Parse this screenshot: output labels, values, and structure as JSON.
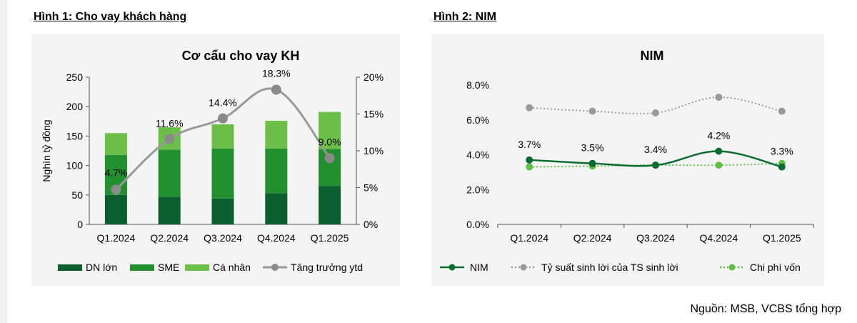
{
  "figure1": {
    "heading": "Hình 1: Cho vay khách hàng"
  },
  "figure2": {
    "heading": "Hình 2: NIM"
  },
  "source": "Nguồn: MSB, VCBS tổng hợp",
  "chart_data": [
    {
      "type": "bar",
      "stacked": true,
      "title": "Cơ cấu cho vay KH",
      "ylabel": "Nghìn tỷ đồng",
      "ylim": [
        0,
        250
      ],
      "yticks": [
        "0",
        "50",
        "100",
        "150",
        "200",
        "250"
      ],
      "y2lim": [
        0,
        20
      ],
      "y2ticks": [
        "0%",
        "5%",
        "10%",
        "15%",
        "20%"
      ],
      "categories": [
        "Q1.2024",
        "Q2.2024",
        "Q3.2024",
        "Q4.2024",
        "Q1.2025"
      ],
      "series": [
        {
          "name": "DN lớn",
          "color": "#0b5e2e",
          "values": [
            50,
            47,
            44,
            53,
            65
          ]
        },
        {
          "name": "SME",
          "color": "#22902f",
          "values": [
            68,
            80,
            85,
            76,
            63
          ]
        },
        {
          "name": "Cá nhân",
          "color": "#6cc04a",
          "values": [
            37,
            38,
            41,
            47,
            63
          ]
        }
      ],
      "line": {
        "name": "Tăng trưởng ytd",
        "color": "#999999",
        "axis": "right",
        "values": [
          4.7,
          11.6,
          14.4,
          18.3,
          9.0
        ],
        "labels": [
          "4.7%",
          "11.6%",
          "14.4%",
          "18.3%",
          "9.0%"
        ]
      },
      "legend_position": "bottom",
      "grid": false
    },
    {
      "type": "line",
      "title": "NIM",
      "ylim": [
        0,
        8
      ],
      "yticks": [
        "0.0%",
        "2.0%",
        "4.0%",
        "6.0%",
        "8.0%"
      ],
      "categories": [
        "Q1.2024",
        "Q2.2024",
        "Q3.2024",
        "Q4.2024",
        "Q1.2025"
      ],
      "series": [
        {
          "name": "NIM",
          "color": "#0b6b30",
          "style": "solid",
          "values": [
            3.7,
            3.5,
            3.4,
            4.2,
            3.3
          ],
          "labels": [
            "3.7%",
            "3.5%",
            "3.4%",
            "4.2%",
            "3.3%"
          ]
        },
        {
          "name": "Tỷ suất sinh lời của TS sinh lời",
          "color": "#9a9a9a",
          "style": "dotted",
          "values": [
            6.7,
            6.5,
            6.4,
            7.3,
            6.5
          ]
        },
        {
          "name": "Chi phí vốn",
          "color": "#5fbf45",
          "style": "dotted",
          "values": [
            3.3,
            3.35,
            3.4,
            3.4,
            3.5
          ]
        }
      ],
      "legend_position": "bottom",
      "grid": false
    }
  ]
}
